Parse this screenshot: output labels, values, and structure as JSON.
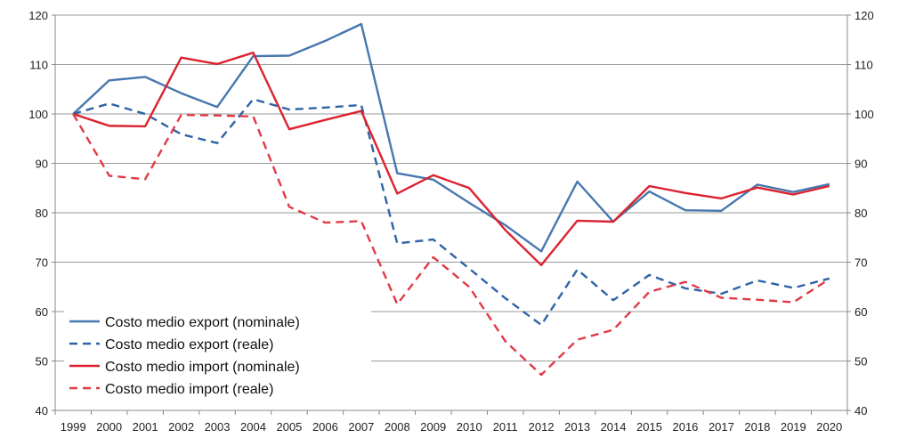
{
  "chart_data": {
    "type": "line",
    "x": [
      "1999",
      "2000",
      "2001",
      "2002",
      "2003",
      "2004",
      "2005",
      "2006",
      "2007",
      "2008",
      "2009",
      "2010",
      "2011",
      "2012",
      "2013",
      "2014",
      "2015",
      "2016",
      "2017",
      "2018",
      "2019",
      "2020"
    ],
    "ylim": [
      40,
      120
    ],
    "y_ticks": [
      "40",
      "50",
      "60",
      "70",
      "80",
      "90",
      "100",
      "110",
      "120"
    ],
    "grid": "horizontal",
    "right_axis": true,
    "legend_position": "bottom-left",
    "series": [
      {
        "name": "Costo medio export (nominale)",
        "color": "#4677AF",
        "dash": "solid",
        "values": [
          100,
          106.8,
          107.5,
          104.2,
          101.4,
          111.7,
          111.8,
          114.8,
          118.2,
          88.0,
          86.7,
          82.0,
          77.5,
          72.2,
          86.3,
          78.2,
          84.3,
          80.5,
          80.4,
          85.7,
          84.2,
          85.8
        ]
      },
      {
        "name": "Costo medio export (reale)",
        "color": "#2E63A6",
        "dash": "dashed",
        "values": [
          100,
          102.1,
          100.0,
          95.9,
          94.1,
          103.0,
          100.9,
          101.3,
          101.8,
          73.8,
          74.6,
          68.7,
          62.7,
          57.3,
          68.5,
          62.3,
          67.4,
          64.7,
          63.6,
          66.3,
          64.8,
          66.7
        ]
      },
      {
        "name": "Costo medio import (nominale)",
        "color": "#DC2230",
        "dash": "solid",
        "values": [
          100,
          97.6,
          97.5,
          111.4,
          110.1,
          112.4,
          96.9,
          98.8,
          100.6,
          83.9,
          87.6,
          85.0,
          76.5,
          69.4,
          78.4,
          78.2,
          85.4,
          84.0,
          82.9,
          85.1,
          83.7,
          85.4
        ]
      },
      {
        "name": "Costo medio import (reale)",
        "color": "#E03A46",
        "dash": "dashed",
        "values": [
          100,
          87.5,
          86.8,
          99.8,
          99.7,
          99.5,
          81.2,
          78.0,
          78.3,
          61.5,
          71.0,
          65.0,
          54.0,
          47.2,
          54.3,
          56.3,
          64.0,
          66.0,
          62.8,
          62.4,
          61.9,
          66.6
        ]
      }
    ]
  }
}
